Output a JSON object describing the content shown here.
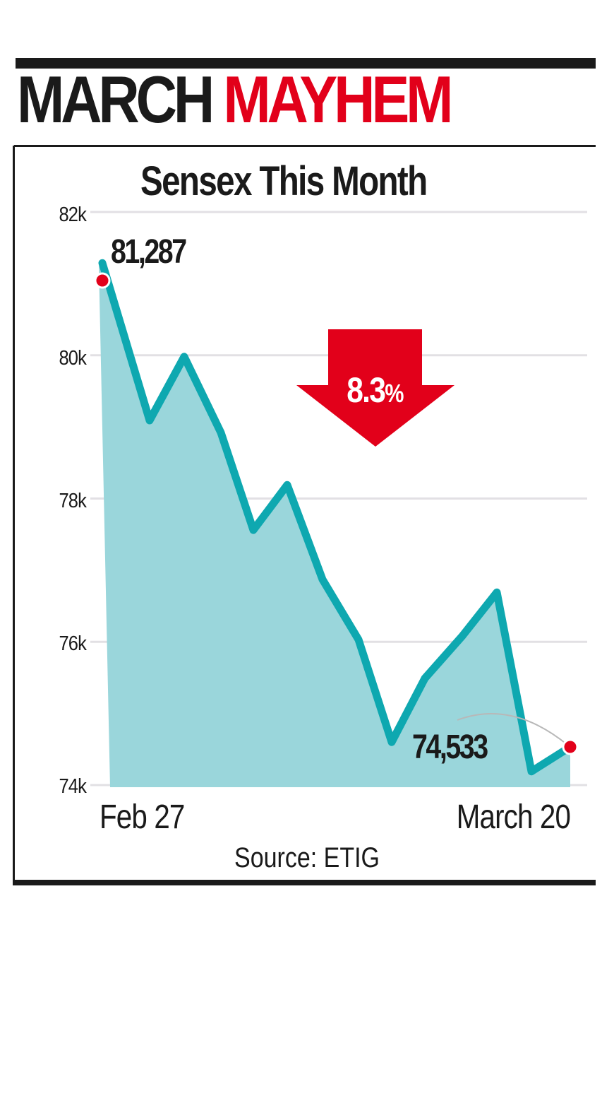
{
  "header": {
    "headline_word1": "MARCH",
    "headline_word2": "MAYHEM"
  },
  "colors": {
    "black": "#1a1a1a",
    "red": "#e2001a",
    "line": "#0ea8b0",
    "fill": "#9ad6db",
    "grid": "#e2e0e4"
  },
  "callouts": {
    "start_value": "81,287",
    "end_value": "74,533",
    "change_value": "8.3",
    "change_unit": "%",
    "change_direction": "down"
  },
  "source": "Source: ETIG",
  "chart_data": {
    "type": "area",
    "title": "Sensex This Month",
    "xlabel": "",
    "ylabel": "",
    "x_tick_labels": [
      "Feb 27",
      "March 20"
    ],
    "y_ticks": [
      74000,
      76000,
      78000,
      80000,
      82000
    ],
    "y_tick_labels": [
      "74k",
      "76k",
      "78k",
      "80k",
      "82k"
    ],
    "ylim": [
      74000,
      82000
    ],
    "grid": true,
    "legend": null,
    "series": [
      {
        "name": "Sensex",
        "x_index": [
          0,
          1,
          2,
          3,
          4,
          5,
          6,
          7,
          8,
          9,
          10,
          11,
          12,
          13
        ],
        "values": [
          81287,
          79090,
          79980,
          78920,
          77560,
          78190,
          76870,
          76030,
          74600,
          75490,
          76080,
          76690,
          74190,
          74533
        ]
      }
    ],
    "annotations": [
      {
        "text": "81,287",
        "point_index": 0
      },
      {
        "text": "74,533",
        "point_index": 13
      },
      {
        "text": "8.3%",
        "type": "down-arrow",
        "meaning": "decline over period"
      }
    ],
    "source": "Source: ETIG"
  }
}
